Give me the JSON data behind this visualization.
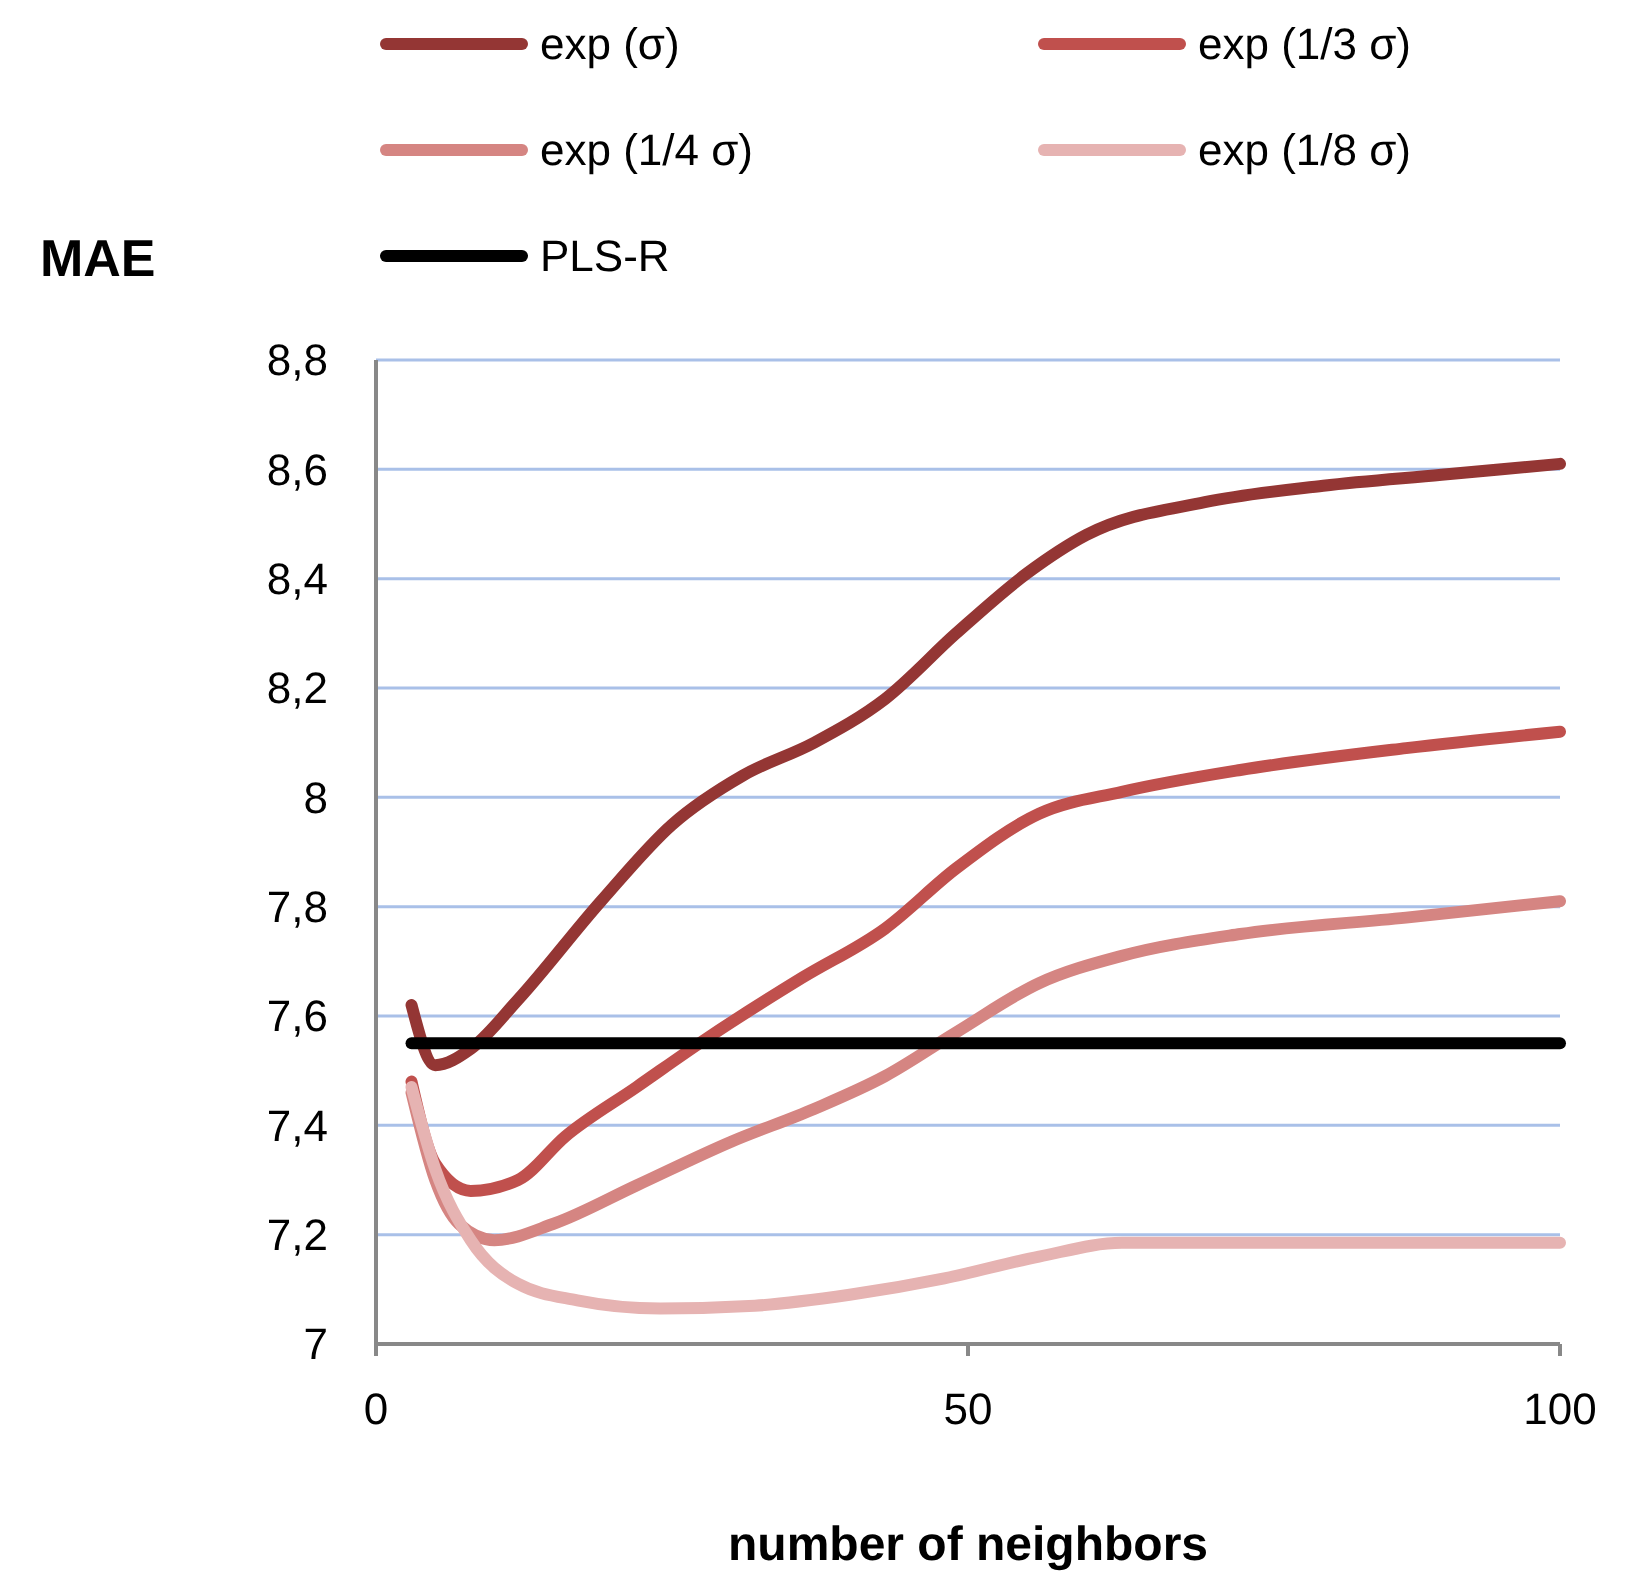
{
  "chart_data": {
    "type": "line",
    "xlabel": "number of neighbors",
    "ylabel": "MAE",
    "xlim": [
      0,
      100
    ],
    "xticks": [
      0,
      50,
      100
    ],
    "ylim": [
      7,
      8.8
    ],
    "yticks": [
      7,
      {
        "value": 7.2,
        "label": "7,2"
      },
      {
        "value": 7.4,
        "label": "7,4"
      },
      {
        "value": 7.6,
        "label": "7,6"
      },
      {
        "value": 7.8,
        "label": "7,8"
      },
      8,
      {
        "value": 8.2,
        "label": "8,2"
      },
      {
        "value": 8.4,
        "label": "8,4"
      },
      {
        "value": 8.6,
        "label": "8,6"
      },
      {
        "value": 8.8,
        "label": "8,8"
      }
    ],
    "grid": "y",
    "legend": "top",
    "line_style": "solid",
    "marker": "none",
    "series": [
      {
        "name": "exp (σ)",
        "color": "#943634",
        "x": [
          3,
          5,
          8,
          12,
          19,
          25,
          31,
          37,
          43,
          49,
          55,
          60,
          70,
          80,
          90,
          100
        ],
        "values": [
          7.62,
          7.51,
          7.54,
          7.63,
          7.81,
          7.95,
          8.04,
          8.1,
          8.18,
          8.3,
          8.41,
          8.48,
          8.54,
          8.57,
          8.59,
          8.61
        ]
      },
      {
        "name": "exp (1/3 σ)",
        "color": "#c0504d",
        "x": [
          3,
          5,
          8,
          12,
          16,
          22,
          28,
          36,
          43,
          49,
          56,
          63,
          73,
          87,
          100
        ],
        "values": [
          7.48,
          7.33,
          7.28,
          7.3,
          7.38,
          7.47,
          7.56,
          7.67,
          7.76,
          7.87,
          7.97,
          8.01,
          8.05,
          8.09,
          8.12
        ]
      },
      {
        "name": "exp (1/4 σ)",
        "color": "#d58582",
        "x": [
          3,
          5,
          7,
          10,
          15,
          22,
          30,
          37,
          43,
          49,
          56,
          63,
          73,
          87,
          100
        ],
        "values": [
          7.46,
          7.3,
          7.22,
          7.19,
          7.22,
          7.29,
          7.37,
          7.43,
          7.49,
          7.57,
          7.66,
          7.71,
          7.75,
          7.78,
          7.81
        ]
      },
      {
        "name": "exp (1/8 σ)",
        "color": "#e6b3b2",
        "x": [
          3,
          5,
          8,
          12,
          17,
          24,
          32,
          40,
          48,
          56,
          63,
          75,
          100
        ],
        "values": [
          7.47,
          7.32,
          7.19,
          7.11,
          7.08,
          7.065,
          7.07,
          7.09,
          7.12,
          7.16,
          7.185,
          7.185,
          7.185
        ]
      },
      {
        "name": "PLS-R",
        "color": "#000000",
        "x": [
          3,
          100
        ],
        "values": [
          7.55,
          7.55
        ]
      }
    ]
  }
}
